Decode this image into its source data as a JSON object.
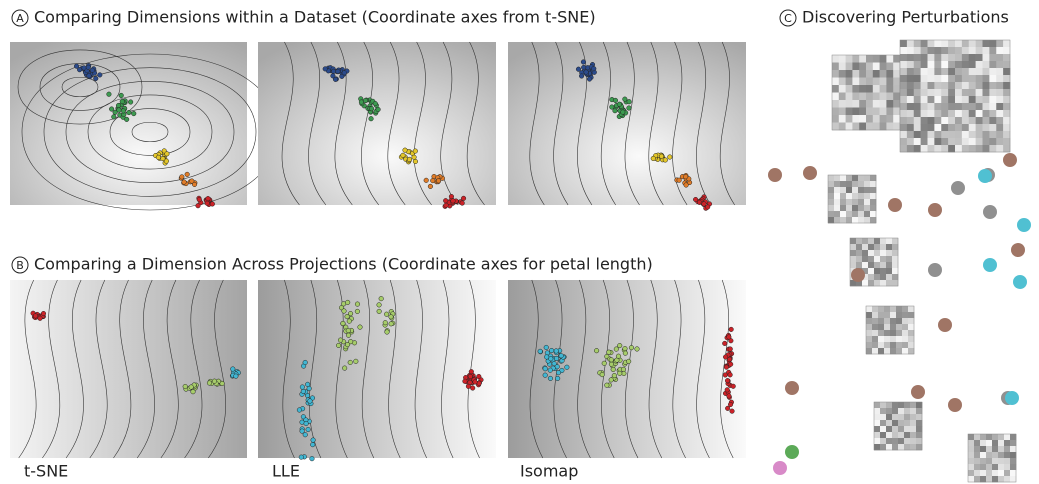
{
  "sections": [
    {
      "marker": "A",
      "title": "Comparing Dimensions within a Dataset (Coordinate axes from t-SNE)"
    },
    {
      "marker": "B",
      "title": "Comparing a Dimension Across Projections (Coordinate axes for petal length)"
    },
    {
      "marker": "C",
      "title": "Discovering Perturbations"
    }
  ],
  "projection_labels": [
    "t-SNE",
    "LLE",
    "Isomap"
  ]
}
